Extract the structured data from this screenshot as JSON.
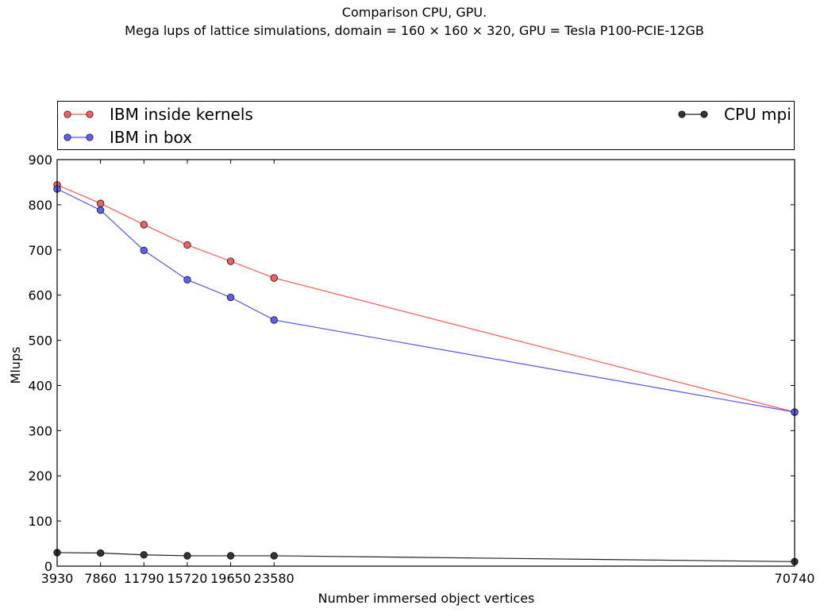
{
  "chart_data": {
    "type": "line",
    "title": "Comparison CPU, GPU.",
    "subtitle": "Mega lups of lattice simulations, domain = 160 × 160 × 320, GPU = Tesla P100-PCIE-12GB",
    "xlabel": "Number immersed object vertices",
    "ylabel": "Mlups",
    "x": [
      3930,
      7860,
      11790,
      15720,
      19650,
      23580,
      70740
    ],
    "xlim": [
      3930,
      70740
    ],
    "ylim": [
      0,
      900
    ],
    "yticks": [
      0,
      100,
      200,
      300,
      400,
      500,
      600,
      700,
      800,
      900
    ],
    "grid": false,
    "legend": "top, in a box above the plot",
    "series": [
      {
        "name": "IBM inside kernels",
        "color": "#ff5555",
        "marker_fill": "#f06060",
        "values": [
          844,
          803,
          756,
          711,
          675,
          638,
          341
        ]
      },
      {
        "name": "IBM in box",
        "color": "#5555ff",
        "marker_fill": "#6060ee",
        "values": [
          835,
          788,
          699,
          634,
          595,
          545,
          341
        ]
      },
      {
        "name": "CPU mpi",
        "color": "#222222",
        "marker_fill": "#333333",
        "values": [
          30,
          29,
          25,
          23,
          23,
          23,
          10
        ]
      }
    ]
  }
}
